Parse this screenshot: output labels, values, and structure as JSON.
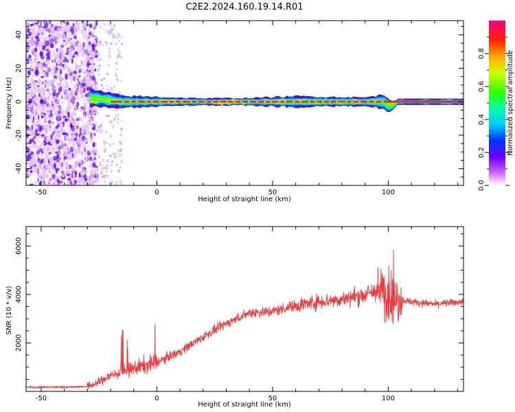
{
  "title": "C2E2.2024.160.19.14.R01",
  "chart_data": [
    {
      "type": "heatmap",
      "xlabel": "Height of straight line (km)",
      "ylabel": "Frequency (Hz)",
      "xlim": [
        -56.5,
        132.5
      ],
      "ylim": [
        -50,
        48.5
      ],
      "xticks": [
        "-50",
        "0",
        "50",
        "100"
      ],
      "yticks": [
        "-40",
        "-20",
        "0",
        "20",
        "40"
      ],
      "colorbar": {
        "label": "Normalized spectral amplitude",
        "range": [
          0,
          1
        ],
        "ticks": [
          "0.0",
          "0.2",
          "0.4",
          "0.6",
          "0.8"
        ]
      },
      "scatter_region_x": [
        -56.5,
        -28
      ],
      "line_start_x": -29,
      "line_center_hz": 0,
      "line_envelope": [
        {
          "x": -29,
          "halfwidth_hz": 5
        },
        {
          "x": -15,
          "halfwidth_hz": 3.5
        },
        {
          "x": 20,
          "halfwidth_hz": 2
        },
        {
          "x": 40,
          "halfwidth_hz": 2.2
        },
        {
          "x": 60,
          "halfwidth_hz": 3.2
        },
        {
          "x": 90,
          "halfwidth_hz": 2.5
        },
        {
          "x": 100,
          "halfwidth_hz": 4.5
        },
        {
          "x": 104,
          "halfwidth_hz": 1.5
        },
        {
          "x": 132.5,
          "halfwidth_hz": 1.5
        }
      ]
    },
    {
      "type": "line",
      "xlabel": "Height of straight line (km)",
      "ylabel": "SNR (10 * v/v)",
      "xlim": [
        -56.5,
        132.5
      ],
      "ylim": [
        0,
        6800
      ],
      "xticks": [
        "-50",
        "0",
        "50",
        "100"
      ],
      "yticks": [
        "2000",
        "4000",
        "6000"
      ],
      "color": "#ee3b3b",
      "trend": {
        "x": [
          -56.5,
          -40,
          -30,
          -25,
          -20,
          -10,
          0,
          10,
          20,
          30,
          40,
          50,
          60,
          70,
          80,
          90,
          95,
          100,
          105,
          110,
          120,
          132.5
        ],
        "y": [
          170,
          180,
          200,
          380,
          650,
          950,
          1200,
          1650,
          2250,
          2800,
          3250,
          3300,
          3550,
          3700,
          3800,
          4000,
          4150,
          3850,
          3800,
          3700,
          3600,
          3700
        ]
      }
    }
  ]
}
